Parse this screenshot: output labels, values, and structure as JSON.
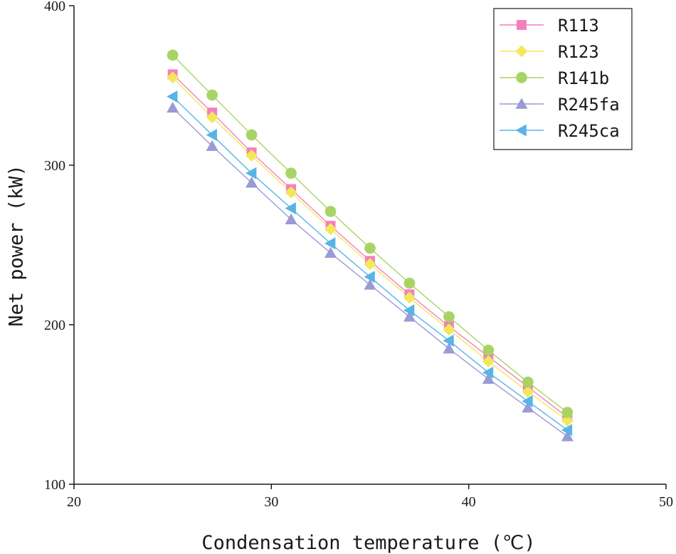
{
  "chart_data": {
    "type": "line",
    "title": "",
    "xlabel": "Condensation temperature (℃)",
    "ylabel": "Net power (kW)",
    "xlim": [
      20,
      50
    ],
    "ylim": [
      100,
      400
    ],
    "xticks": [
      20,
      30,
      40,
      50
    ],
    "yticks": [
      100,
      200,
      300,
      400
    ],
    "xtick_labels": [
      "20",
      "30",
      "40",
      "50"
    ],
    "ytick_labels": [
      "100",
      "200",
      "300",
      "400"
    ],
    "grid": false,
    "legend_position": "top-right",
    "x": [
      25,
      27,
      29,
      31,
      33,
      35,
      37,
      39,
      41,
      43,
      45
    ],
    "series": [
      {
        "name": "R113",
        "marker": "square",
        "color": "#f47fbf",
        "values": [
          357,
          333,
          308,
          285,
          262,
          240,
          219,
          199,
          180,
          161,
          142
        ]
      },
      {
        "name": "R123",
        "marker": "diamond",
        "color": "#f2e85a",
        "values": [
          355,
          330,
          306,
          283,
          260,
          238,
          217,
          197,
          177,
          158,
          140
        ]
      },
      {
        "name": "R141b",
        "marker": "circle",
        "color": "#a8d465",
        "values": [
          369,
          344,
          319,
          295,
          271,
          248,
          226,
          205,
          184,
          164,
          145
        ]
      },
      {
        "name": "R245fa",
        "marker": "triangle-up",
        "color": "#9a9ad6",
        "values": [
          336,
          312,
          289,
          266,
          245,
          225,
          205,
          185,
          166,
          148,
          130
        ]
      },
      {
        "name": "R245ca",
        "marker": "triangle-left",
        "color": "#58b4e6",
        "values": [
          343,
          319,
          295,
          273,
          251,
          230,
          209,
          190,
          170,
          152,
          134
        ]
      }
    ]
  }
}
